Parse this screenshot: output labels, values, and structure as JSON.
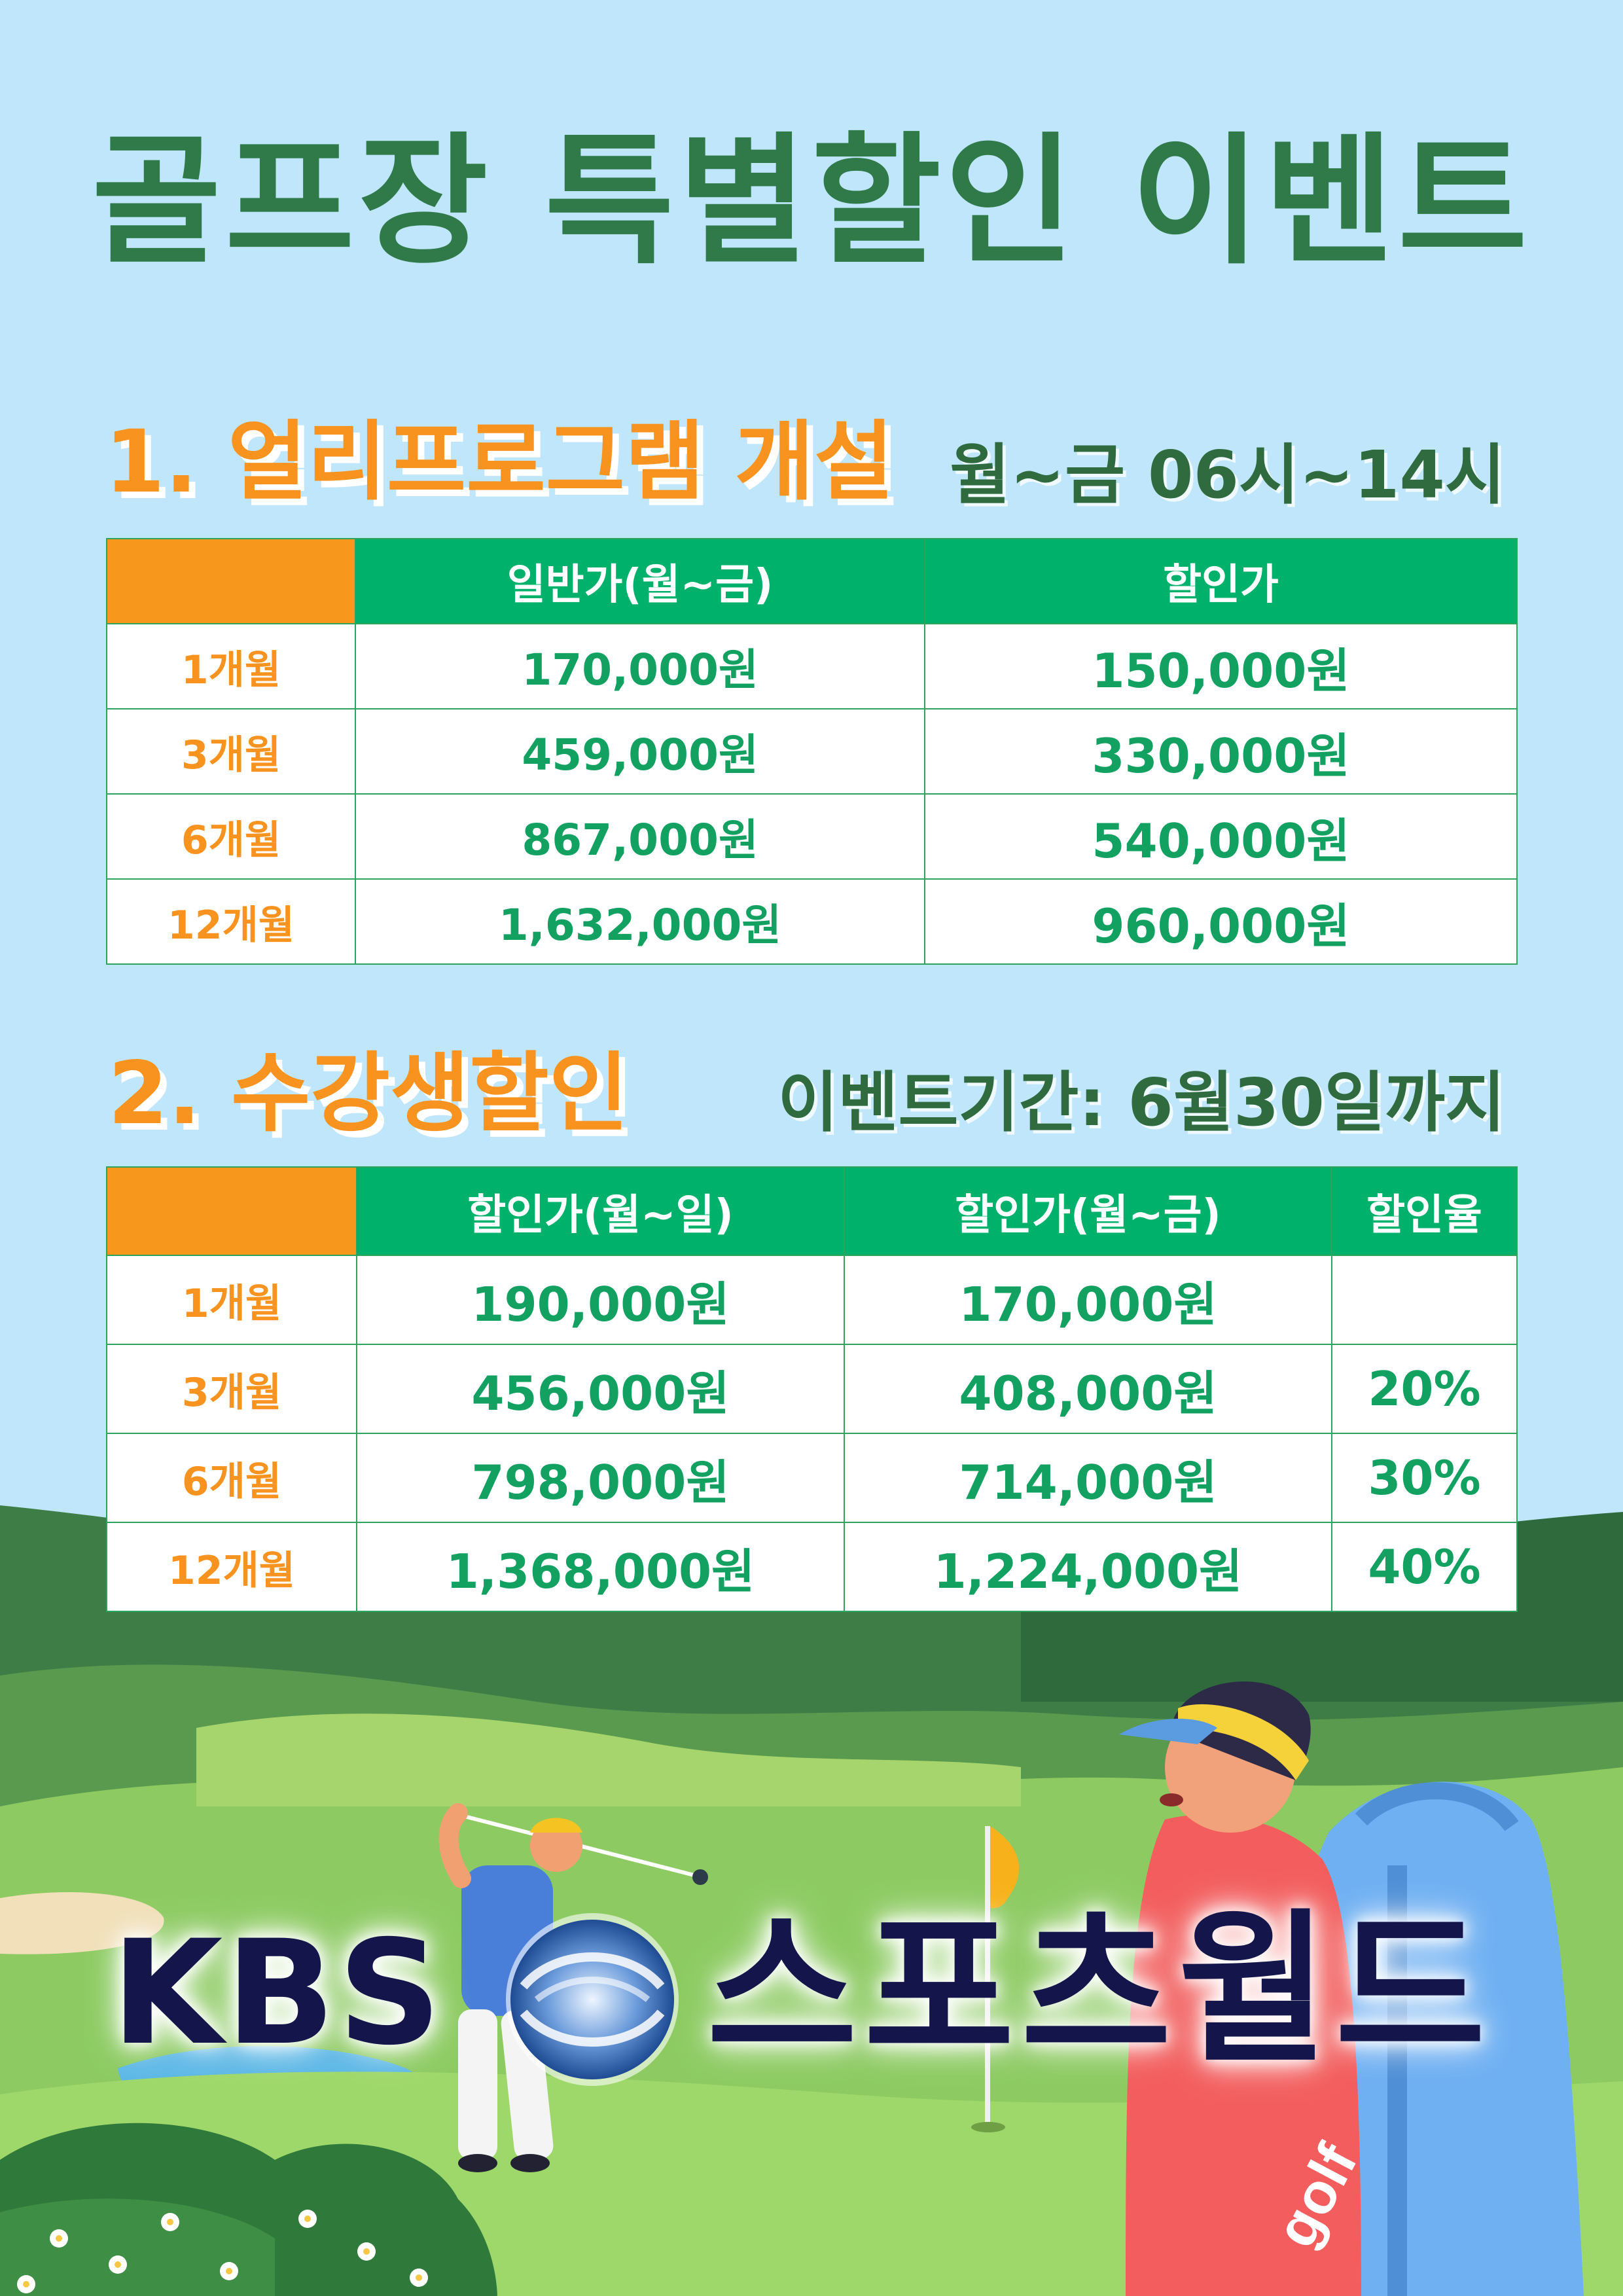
{
  "title": "골프장 특별할인 이벤트",
  "section1": {
    "title": "1. 얼리프로그램 개설",
    "note": "월~금 06시~14시",
    "columns": [
      "",
      "일반가(월~금)",
      "할인가"
    ],
    "rows": [
      {
        "period": "1개월",
        "regular": "170,000원",
        "discount": "150,000원"
      },
      {
        "period": "3개월",
        "regular": "459,000원",
        "discount": "330,000원"
      },
      {
        "period": "6개월",
        "regular": "867,000원",
        "discount": "540,000원"
      },
      {
        "period": "12개월",
        "regular": "1,632,000원",
        "discount": "960,000원"
      }
    ]
  },
  "section2": {
    "title": "2. 수강생할인",
    "note": "이벤트기간: 6월30일까지",
    "columns": [
      "",
      "할인가(월~일)",
      "할인가(월~금)",
      "할인율"
    ],
    "rows": [
      {
        "period": "1개월",
        "weekall": "190,000원",
        "weekday": "170,000원",
        "rate": ""
      },
      {
        "period": "3개월",
        "weekall": "456,000원",
        "weekday": "408,000원",
        "rate": "20%"
      },
      {
        "period": "6개월",
        "weekall": "798,000원",
        "weekday": "714,000원",
        "rate": "30%"
      },
      {
        "period": "12개월",
        "weekall": "1,368,000원",
        "weekday": "1,224,000원",
        "rate": "40%"
      }
    ]
  },
  "logo": {
    "brand": "KBS",
    "name": "스포츠월드"
  },
  "illustration": {
    "bag_text": "golf"
  },
  "colors": {
    "sky": "#bfe6fb",
    "title_green": "#2f7a48",
    "header_green": "#00b16b",
    "orange": "#f7931e",
    "value_green": "#13a162",
    "logo_navy": "#14154a"
  }
}
